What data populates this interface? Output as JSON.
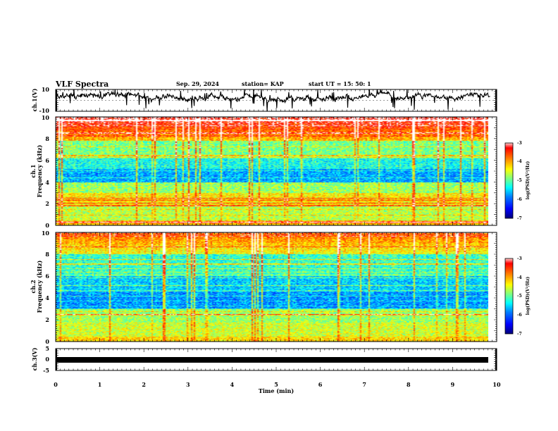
{
  "header": {
    "title": "VLF Spectra",
    "date": "Sep. 29, 2024",
    "station": "station= KAP",
    "start": "start  UT  =   15: 50: 1"
  },
  "colors": {
    "axes": "#000000",
    "trace": "#000000",
    "colormap": [
      "#000080",
      "#0000ff",
      "#0080ff",
      "#00ffff",
      "#80ff80",
      "#ffff00",
      "#ff8000",
      "#ff0000",
      "#ffffff"
    ]
  },
  "chart_data": [
    {
      "type": "line",
      "panel": "ch1-waveform",
      "ylabel": "ch.1(V)",
      "ylim": [
        -10,
        10
      ],
      "yticks": [
        "10",
        "-10"
      ],
      "xlim": [
        0,
        10
      ],
      "x": [
        0,
        0.5,
        1,
        1.5,
        2,
        2.5,
        3,
        3.5,
        4,
        4.5,
        5,
        5.5,
        6,
        6.5,
        7,
        7.5,
        8,
        8.5,
        9,
        9.5,
        9.85
      ],
      "values": [
        4,
        3,
        5,
        6,
        2,
        3,
        0,
        3,
        1,
        4,
        -1,
        2,
        0,
        2,
        3,
        5,
        2,
        4,
        1,
        5,
        3
      ]
    },
    {
      "type": "heatmap",
      "panel": "ch1-spectrogram",
      "ylabel": "ch.1\nFrequency (kHz)",
      "ylim": [
        0,
        10
      ],
      "yticks": [
        "0",
        "2",
        "4",
        "6",
        "8",
        "10"
      ],
      "xlim": [
        0,
        10
      ],
      "data_end_min": 9.85,
      "colorbar": {
        "label": "log(PSD)(V²/Hz)",
        "range": [
          -7,
          -3
        ],
        "ticks": [
          "-3",
          "-4",
          "-5",
          "-6",
          "-7"
        ]
      }
    },
    {
      "type": "heatmap",
      "panel": "ch2-spectrogram",
      "ylabel": "ch.2\nFrequency (kHz)",
      "ylim": [
        0,
        10
      ],
      "yticks": [
        "0",
        "2",
        "4",
        "6",
        "8",
        "10"
      ],
      "xlim": [
        0,
        10
      ],
      "data_end_min": 9.85,
      "colorbar": {
        "label": "log(PSD)(V²/Hz)",
        "range": [
          -7,
          -3
        ],
        "ticks": [
          "-3",
          "-4",
          "-5",
          "-6",
          "-7"
        ]
      }
    },
    {
      "type": "line",
      "panel": "ch3-waveform",
      "ylabel": "ch.3(V)",
      "ylim": [
        -5,
        5
      ],
      "yticks": [
        "5",
        "0",
        "-5"
      ],
      "xlim": [
        0,
        10
      ],
      "x": [
        0,
        9.85
      ],
      "values": [
        0,
        0
      ]
    }
  ],
  "xaxis": {
    "label": "Time (min)",
    "ticks": [
      "0",
      "1",
      "2",
      "3",
      "4",
      "5",
      "6",
      "7",
      "8",
      "9",
      "10"
    ]
  }
}
